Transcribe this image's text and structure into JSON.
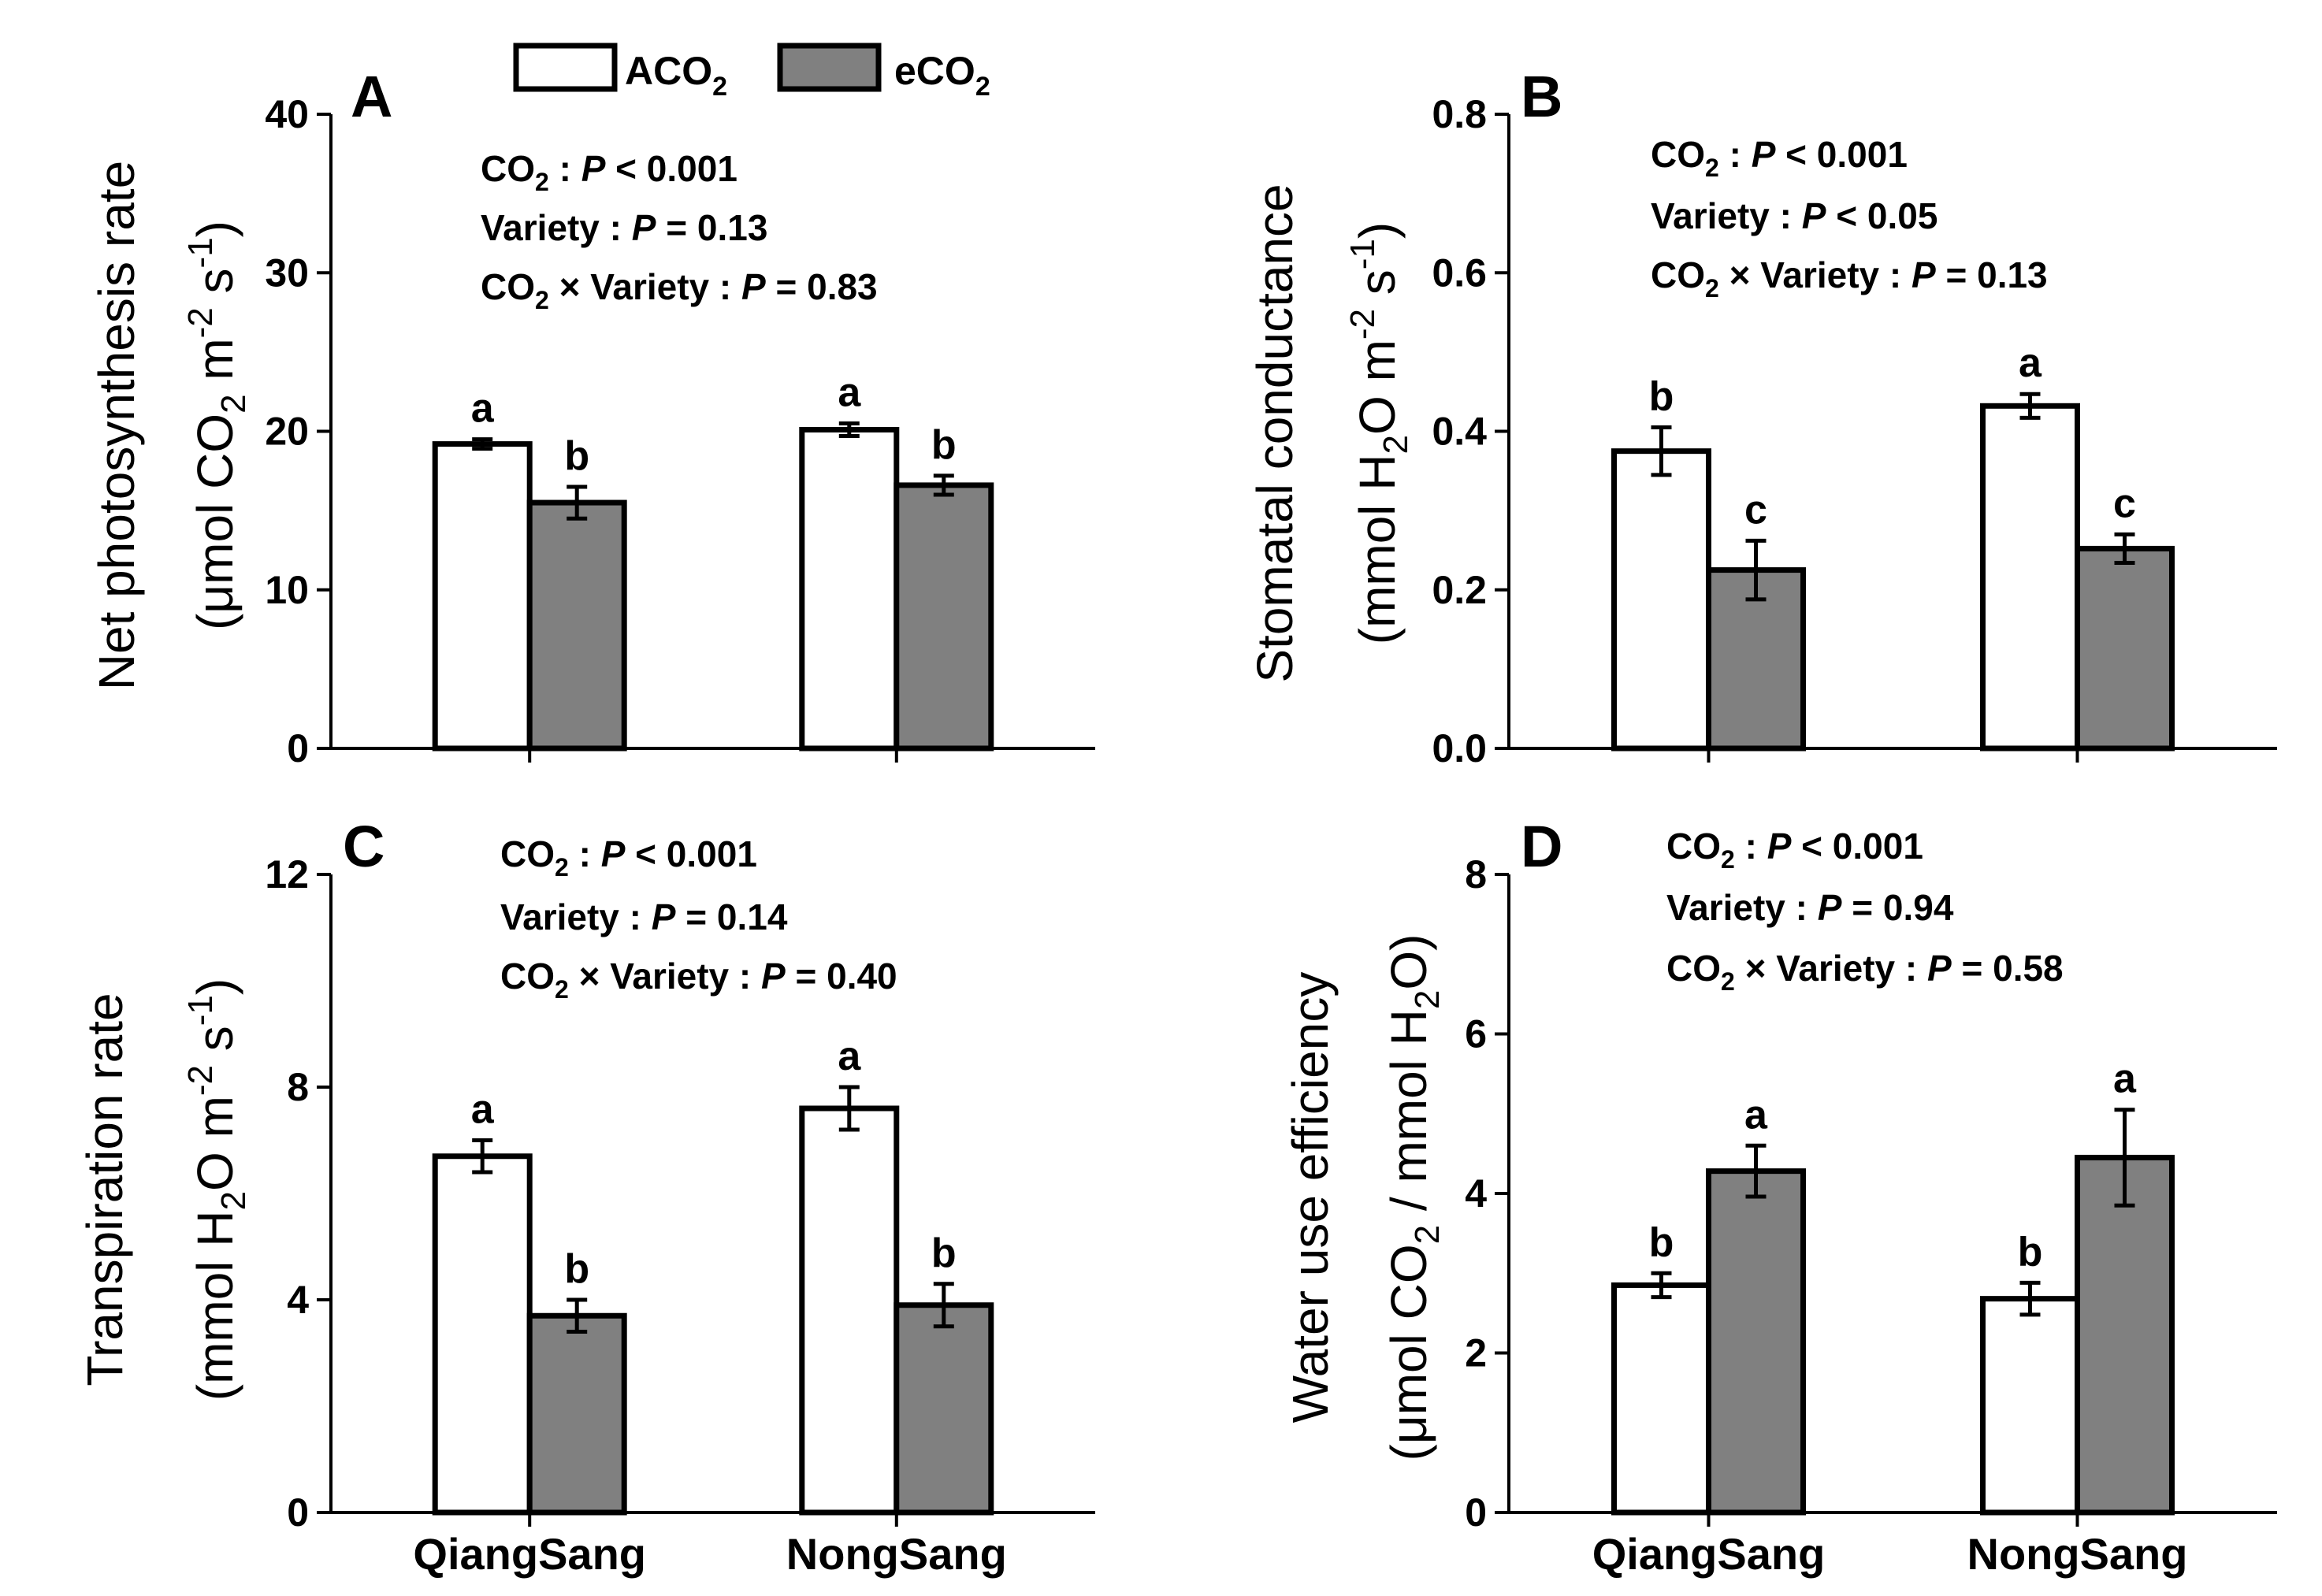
{
  "legend": [
    {
      "label": "ACO2",
      "base": "ACO",
      "sub": "2",
      "color": "#ffffff"
    },
    {
      "label": "eCO2",
      "base": "eCO",
      "sub": "2",
      "color": "#808080"
    }
  ],
  "colors": {
    "aco2": "#ffffff",
    "eco2": "#808080",
    "stroke": "#000000"
  },
  "chart_data": [
    {
      "type": "bar",
      "panel": "A",
      "categories": [
        "QiangSang",
        "NongSang"
      ],
      "series": [
        {
          "name": "ACO2",
          "values": [
            19.2,
            20.1
          ],
          "errors": [
            0.3,
            0.4
          ],
          "letters": [
            "a",
            "a"
          ]
        },
        {
          "name": "eCO2",
          "values": [
            15.5,
            16.6
          ],
          "errors": [
            1.0,
            0.6
          ],
          "letters": [
            "b",
            "b"
          ]
        }
      ],
      "ylim": [
        0,
        40
      ],
      "yticks": [
        "0",
        "10",
        "20",
        "30",
        "40"
      ],
      "ylabel": {
        "line1": "Net photosynthesis rate",
        "line2": {
          "pre": "(μmol CO",
          "s1": "2",
          "mid": " m",
          "s2": "-2",
          "mid2": " s",
          "s3": "-1",
          "post": ")"
        }
      },
      "stats": [
        {
          "label": "CO2 :",
          "p": "P < 0.001",
          "parts": [
            "CO",
            "2",
            " :"
          ]
        },
        {
          "label": "Variety :",
          "p": "P = 0.13",
          "parts": [
            "Variety :"
          ]
        },
        {
          "label": "CO2 × Variety :",
          "p": "P = 0.83",
          "parts": [
            "CO",
            "2",
            " × Variety :"
          ]
        }
      ]
    },
    {
      "type": "bar",
      "panel": "B",
      "categories": [
        "QiangSang",
        "NongSang"
      ],
      "series": [
        {
          "name": "ACO2",
          "values": [
            0.375,
            0.432
          ],
          "errors": [
            0.03,
            0.015
          ],
          "letters": [
            "b",
            "a"
          ]
        },
        {
          "name": "eCO2",
          "values": [
            0.225,
            0.252
          ],
          "errors": [
            0.037,
            0.018
          ],
          "letters": [
            "c",
            "c"
          ]
        }
      ],
      "ylim": [
        0,
        0.8
      ],
      "yticks": [
        "0.0",
        "0.2",
        "0.4",
        "0.6",
        "0.8"
      ],
      "ylabel": {
        "line1": "Stomatal conductance",
        "line2": {
          "pre": "(mmol H",
          "s1": "2",
          "mid": "O m",
          "s2": "-2",
          "mid2": " s",
          "s3": "-1",
          "post": ")"
        }
      },
      "stats": [
        {
          "label": "CO2 :",
          "p": "P < 0.001",
          "parts": [
            "CO",
            "2",
            " :"
          ]
        },
        {
          "label": "Variety :",
          "p": "P < 0.05",
          "parts": [
            "Variety :"
          ]
        },
        {
          "label": "CO2 × Variety :",
          "p": "P = 0.13",
          "parts": [
            "CO",
            "2",
            " × Variety :"
          ]
        }
      ]
    },
    {
      "type": "bar",
      "panel": "C",
      "categories": [
        "QiangSang",
        "NongSang"
      ],
      "series": [
        {
          "name": "ACO2",
          "values": [
            6.7,
            7.6
          ],
          "errors": [
            0.3,
            0.4
          ],
          "letters": [
            "a",
            "a"
          ]
        },
        {
          "name": "eCO2",
          "values": [
            3.7,
            3.9
          ],
          "errors": [
            0.3,
            0.4
          ],
          "letters": [
            "b",
            "b"
          ]
        }
      ],
      "ylim": [
        0,
        12
      ],
      "yticks": [
        "0",
        "4",
        "8",
        "12"
      ],
      "ylabel": {
        "line1": "Transpiration rate",
        "line2": {
          "pre": "(mmol H",
          "s1": "2",
          "mid": "O m",
          "s2": "-2",
          "mid2": " s",
          "s3": "-1",
          "post": ")"
        }
      },
      "stats": [
        {
          "label": "CO2 :",
          "p": "P < 0.001",
          "parts": [
            "CO",
            "2",
            " :"
          ]
        },
        {
          "label": "Variety :",
          "p": "P = 0.14",
          "parts": [
            "Variety :"
          ]
        },
        {
          "label": "CO2 × Variety :",
          "p": "P = 0.40",
          "parts": [
            "CO",
            "2",
            " × Variety :"
          ]
        }
      ]
    },
    {
      "type": "bar",
      "panel": "D",
      "categories": [
        "QiangSang",
        "NongSang"
      ],
      "series": [
        {
          "name": "ACO2",
          "values": [
            2.85,
            2.68
          ],
          "errors": [
            0.15,
            0.2
          ],
          "letters": [
            "b",
            "b"
          ]
        },
        {
          "name": "eCO2",
          "values": [
            4.28,
            4.45
          ],
          "errors": [
            0.32,
            0.6
          ],
          "letters": [
            "a",
            "a"
          ]
        }
      ],
      "ylim": [
        0,
        8
      ],
      "yticks": [
        "0",
        "2",
        "4",
        "6",
        "8"
      ],
      "ylabel": {
        "line1": "Water use efficiency",
        "line2": {
          "pre": "(μmol CO",
          "s1": "2",
          "mid": " / mmol H",
          "s2": "2",
          "mid2": "O",
          "s3": "",
          "post": ")"
        }
      },
      "stats": [
        {
          "label": "CO2 :",
          "p": "P < 0.001",
          "parts": [
            "CO",
            "2",
            " :"
          ]
        },
        {
          "label": "Variety :",
          "p": "P = 0.94",
          "parts": [
            "Variety :"
          ]
        },
        {
          "label": "CO2 × Variety :",
          "p": "P = 0.58",
          "parts": [
            "CO",
            "2",
            " × Variety :"
          ]
        }
      ]
    }
  ]
}
